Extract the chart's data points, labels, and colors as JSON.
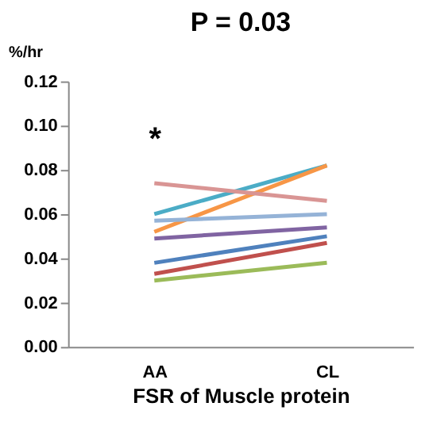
{
  "chart_data": {
    "type": "line",
    "title": "P = 0.03",
    "xlabel": "FSR of Muscle protein",
    "ylabel": "%/hr",
    "categories": [
      "AA",
      "CL"
    ],
    "series": [
      {
        "color": "#4bacc6",
        "values": [
          0.06,
          0.082
        ]
      },
      {
        "color": "#f79646",
        "values": [
          0.052,
          0.082
        ]
      },
      {
        "color": "#d99594",
        "values": [
          0.074,
          0.066
        ]
      },
      {
        "color": "#95b3d7",
        "values": [
          0.057,
          0.06
        ]
      },
      {
        "color": "#8064a2",
        "values": [
          0.049,
          0.054
        ]
      },
      {
        "color": "#4f81bd",
        "values": [
          0.038,
          0.05
        ]
      },
      {
        "color": "#c0504d",
        "values": [
          0.033,
          0.047
        ]
      },
      {
        "color": "#9bbb59",
        "values": [
          0.03,
          0.038
        ]
      }
    ],
    "ylim": [
      0,
      0.12
    ],
    "yticks": [
      {
        "value": 0,
        "label": "0.00"
      },
      {
        "value": 0.02,
        "label": "0.02"
      },
      {
        "value": 0.04,
        "label": "0.04"
      },
      {
        "value": 0.06,
        "label": "0.06"
      },
      {
        "value": 0.08,
        "label": "0.08"
      },
      {
        "value": 0.1,
        "label": "0.10"
      },
      {
        "value": 0.12,
        "label": "0.12"
      }
    ],
    "annotations": [
      "*"
    ],
    "grid": false,
    "legend": false,
    "marker": "none",
    "line_style": "solid"
  }
}
